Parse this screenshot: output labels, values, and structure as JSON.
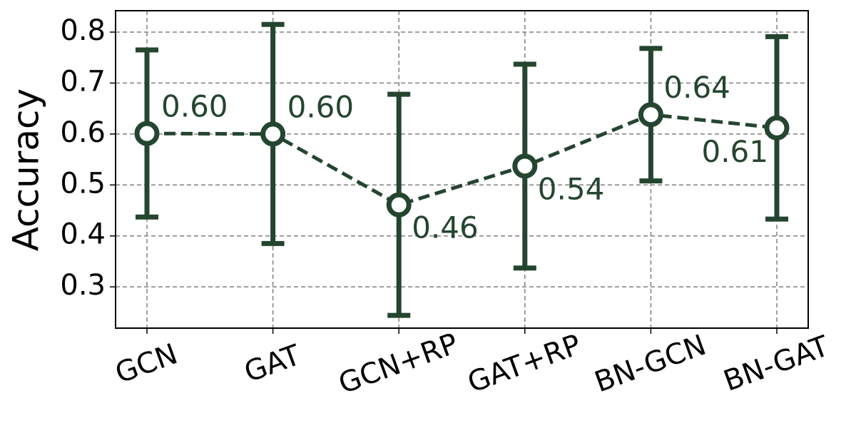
{
  "chart_data": {
    "type": "line",
    "y_label": "Accuracy",
    "categories": [
      "GCN",
      "GAT",
      "GCN+RP",
      "GAT+RP",
      "BN-GCN",
      "BN-GAT"
    ],
    "values": [
      0.601,
      0.6,
      0.461,
      0.537,
      0.638,
      0.612
    ],
    "value_labels": [
      "0.60",
      "0.60",
      "0.46",
      "0.54",
      "0.64",
      "0.61"
    ],
    "errors": [
      0.164,
      0.215,
      0.217,
      0.2,
      0.13,
      0.179
    ],
    "color": "#24452f",
    "ylim": [
      0.219,
      0.842
    ],
    "yticks": [
      0.3,
      0.4,
      0.5,
      0.6,
      0.7,
      0.8
    ],
    "grid": true
  }
}
